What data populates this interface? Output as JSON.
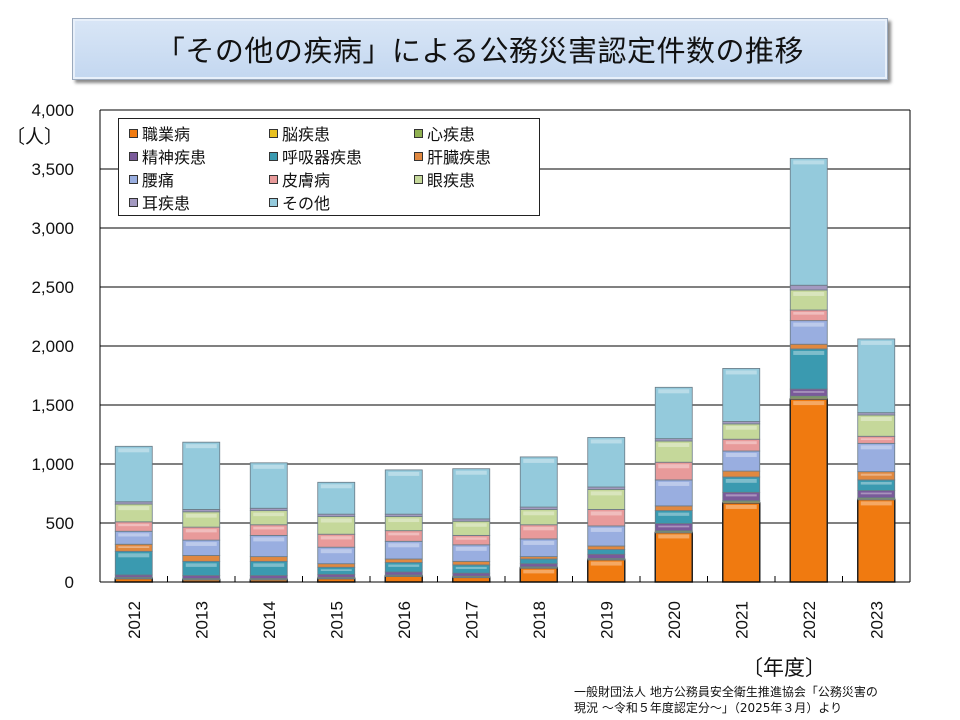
{
  "header": {
    "title": "「その他の疾病」による公務災害認定件数の推移"
  },
  "footer": {
    "xlabel": "〔年度〕",
    "source_line1": "一般財団法人 地方公務員安全衛生推進協会「公務災害の",
    "source_line2": "現況 ～令和５年度認定分～」（2025年３月）より"
  },
  "chart_data": {
    "type": "bar",
    "stacked": true,
    "title": "「その他の疾病」による公務災害認定件数の推移",
    "xlabel": "〔年度〕",
    "ylabel": "〔人〕",
    "ylim": [
      0,
      4000
    ],
    "yticks": [
      0,
      500,
      1000,
      1500,
      2000,
      2500,
      3000,
      3500,
      4000
    ],
    "ytick_labels": [
      "0",
      "500",
      "1,000",
      "1,500",
      "2,000",
      "2,500",
      "3,000",
      "3,500",
      "4,000"
    ],
    "grid": true,
    "legend_position": "top-left",
    "categories": [
      "2012",
      "2013",
      "2014",
      "2015",
      "2016",
      "2017",
      "2018",
      "2019",
      "2020",
      "2021",
      "2022",
      "2023"
    ],
    "series": [
      {
        "name": "職業病",
        "color": "#f07a10",
        "values": [
          30,
          20,
          20,
          30,
          50,
          40,
          120,
          190,
          420,
          670,
          1550,
          700
        ]
      },
      {
        "name": "脳疾患",
        "color": "#e8c020",
        "values": [
          5,
          5,
          5,
          5,
          5,
          5,
          5,
          5,
          5,
          10,
          10,
          5
        ]
      },
      {
        "name": "心疾患",
        "color": "#8fb050",
        "values": [
          5,
          5,
          5,
          5,
          5,
          5,
          5,
          5,
          10,
          10,
          15,
          10
        ]
      },
      {
        "name": "精神疾患",
        "color": "#7a5a9a",
        "values": [
          20,
          25,
          25,
          25,
          25,
          25,
          25,
          35,
          60,
          70,
          60,
          60
        ]
      },
      {
        "name": "呼吸器疾患",
        "color": "#3a9ab0",
        "values": [
          200,
          120,
          120,
          60,
          80,
          70,
          40,
          40,
          110,
          130,
          340,
          90
        ]
      },
      {
        "name": "肝臓疾患",
        "color": "#e08840",
        "values": [
          60,
          50,
          40,
          30,
          30,
          30,
          20,
          30,
          40,
          50,
          40,
          70
        ]
      },
      {
        "name": "腰痛",
        "color": "#99aee0",
        "values": [
          110,
          130,
          180,
          140,
          150,
          140,
          150,
          170,
          220,
          170,
          200,
          240
        ]
      },
      {
        "name": "皮膚病",
        "color": "#e89a9a",
        "values": [
          80,
          110,
          90,
          110,
          90,
          80,
          120,
          140,
          150,
          100,
          90,
          60
        ]
      },
      {
        "name": "眼疾患",
        "color": "#c5d89a",
        "values": [
          150,
          130,
          120,
          150,
          120,
          120,
          130,
          170,
          180,
          130,
          170,
          180
        ]
      },
      {
        "name": "耳疾患",
        "color": "#a399c0",
        "values": [
          20,
          20,
          20,
          20,
          20,
          20,
          20,
          20,
          20,
          20,
          40,
          20
        ]
      },
      {
        "name": "その他",
        "color": "#94cadc",
        "values": [
          470,
          570,
          385,
          270,
          375,
          425,
          425,
          420,
          435,
          450,
          1075,
          625
        ]
      }
    ]
  }
}
